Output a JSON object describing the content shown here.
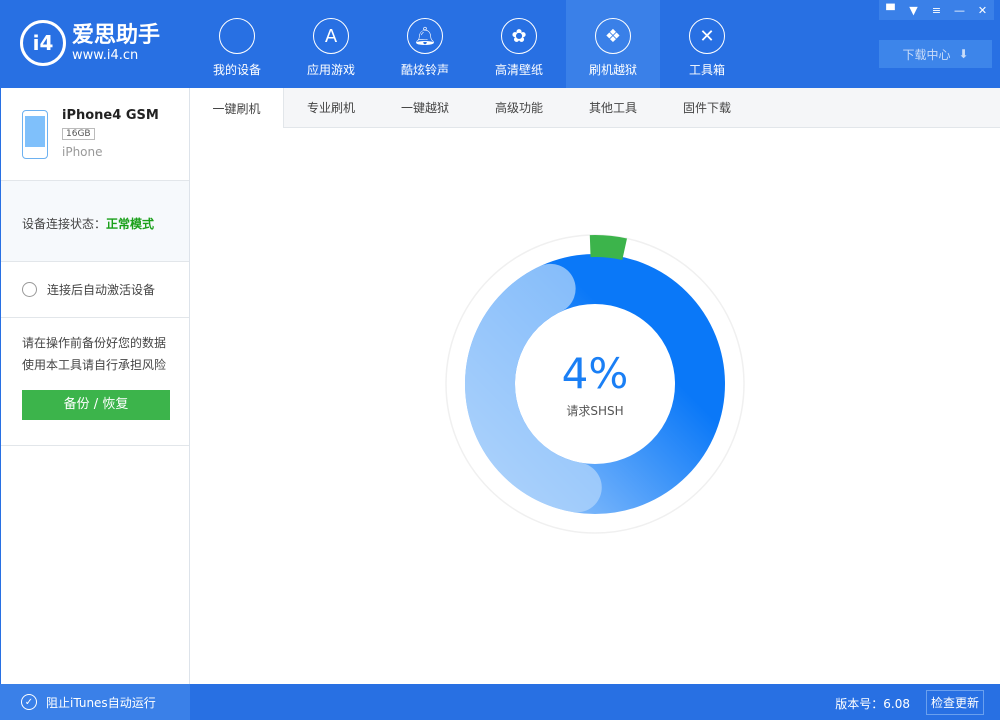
{
  "app": {
    "logo_name": "爱思助手",
    "logo_url": "www.i4.cn"
  },
  "nav": [
    {
      "label": "我的设备",
      "icon": "apple-icon"
    },
    {
      "label": "应用游戏",
      "icon": "app-store-icon"
    },
    {
      "label": "酷炫铃声",
      "icon": "bell-icon"
    },
    {
      "label": "高清壁纸",
      "icon": "flower-icon"
    },
    {
      "label": "刷机越狱",
      "icon": "box-icon",
      "active": true
    },
    {
      "label": "工具箱",
      "icon": "tools-icon"
    }
  ],
  "download_center": "下载中心",
  "device": {
    "name": "iPhone4 GSM",
    "capacity": "16GB",
    "type": "iPhone"
  },
  "status": {
    "label": "设备连接状态：",
    "value": "正常模式",
    "value_color": "#1aa01a"
  },
  "auto_activate": "连接后自动激活设备",
  "warning": [
    "请在操作前备份好您的数据",
    "使用本工具请自行承担风险"
  ],
  "backup_button": "备份 / 恢复",
  "tabs": [
    "一键刷机",
    "专业刷机",
    "一键越狱",
    "高级功能",
    "其他工具",
    "固件下载"
  ],
  "progress": {
    "percent_text": "4%",
    "value": 4,
    "status": "请求SHSH"
  },
  "footer": {
    "itunes": "阻止iTunes自动运行",
    "version": "版本号：6.08",
    "update": "检查更新"
  },
  "colors": {
    "brand": "#2870e3",
    "accent": "#1a7ff5",
    "progress": "#3cb44b"
  }
}
